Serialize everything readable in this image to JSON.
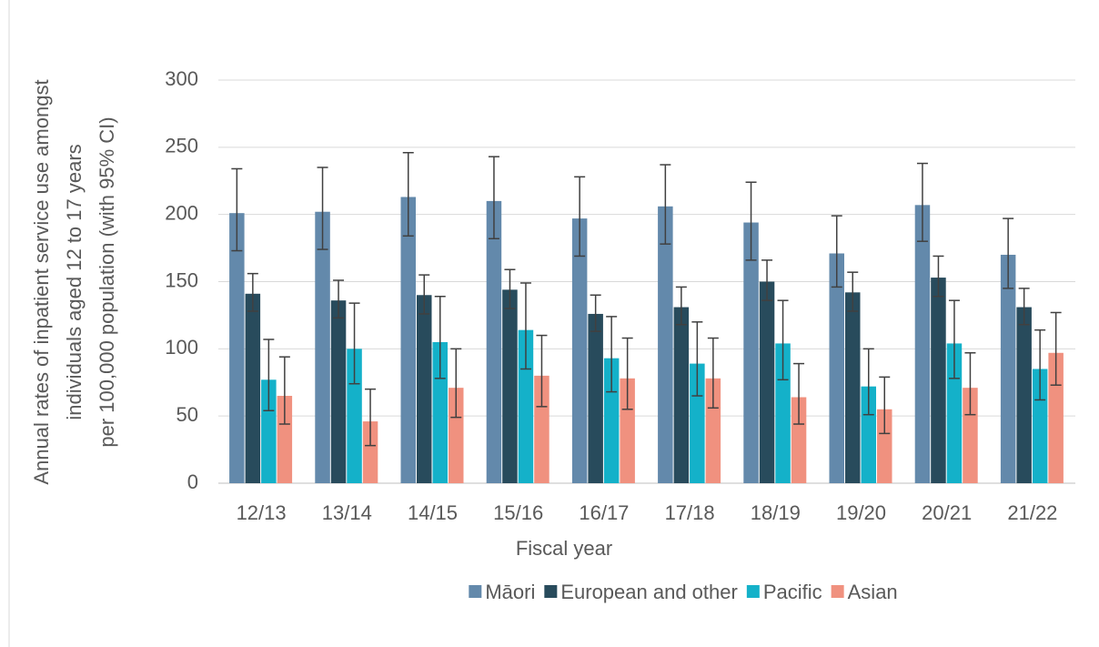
{
  "chart_data": {
    "type": "bar",
    "y_label": [
      "Annual rates of inpatient service use amongst",
      "individuals aged 12 to 17 years",
      "per 100,000 population (with 95% CI)"
    ],
    "x_label": "Fiscal year",
    "categories": [
      "12/13",
      "13/14",
      "14/15",
      "15/16",
      "16/17",
      "17/18",
      "18/19",
      "19/20",
      "20/21",
      "21/22"
    ],
    "series": [
      {
        "name": "Māori",
        "color": "#6389ab",
        "values": [
          201,
          202,
          213,
          210,
          197,
          206,
          194,
          171,
          207,
          170
        ],
        "ci_lower": [
          173,
          174,
          184,
          182,
          169,
          178,
          166,
          146,
          180,
          145
        ],
        "ci_upper": [
          234,
          235,
          246,
          243,
          228,
          237,
          224,
          199,
          238,
          197
        ]
      },
      {
        "name": "European and other",
        "color": "#284b5c",
        "values": [
          141,
          136,
          140,
          144,
          126,
          131,
          150,
          142,
          153,
          131
        ],
        "ci_lower": [
          128,
          123,
          126,
          130,
          113,
          118,
          136,
          128,
          139,
          118
        ],
        "ci_upper": [
          156,
          151,
          155,
          159,
          140,
          146,
          166,
          157,
          169,
          145
        ]
      },
      {
        "name": "Pacific",
        "color": "#14b1c9",
        "values": [
          77,
          100,
          105,
          114,
          93,
          89,
          104,
          72,
          104,
          85
        ],
        "ci_lower": [
          54,
          74,
          78,
          85,
          68,
          65,
          77,
          51,
          78,
          62
        ],
        "ci_upper": [
          107,
          134,
          139,
          149,
          124,
          120,
          136,
          100,
          136,
          114
        ]
      },
      {
        "name": "Asian",
        "color": "#f0917f",
        "values": [
          65,
          46,
          71,
          80,
          78,
          78,
          64,
          55,
          71,
          97
        ],
        "ci_lower": [
          44,
          28,
          49,
          57,
          55,
          56,
          44,
          37,
          51,
          73
        ],
        "ci_upper": [
          94,
          70,
          100,
          110,
          108,
          108,
          89,
          79,
          97,
          127
        ]
      }
    ],
    "ylim": [
      0,
      300
    ],
    "yticks": [
      0,
      50,
      100,
      150,
      200,
      250,
      300
    ],
    "grid": true,
    "legend": "bottom"
  }
}
